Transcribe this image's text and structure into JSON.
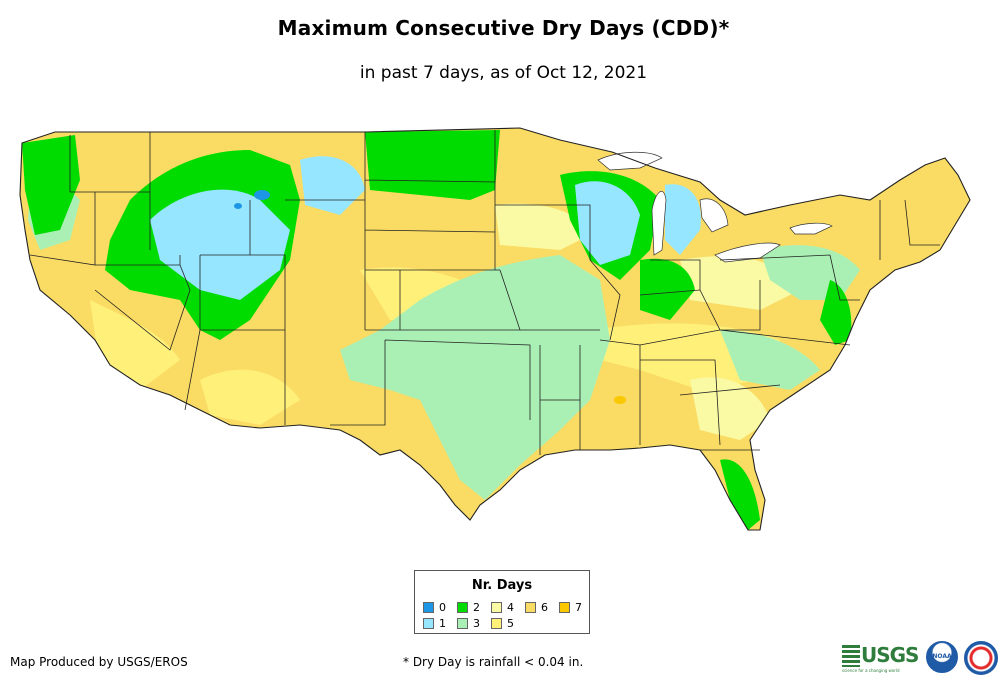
{
  "header": {
    "title": "Maximum Consecutive Dry Days (CDD)*",
    "subtitle": "in past 7 days, as of Oct 12, 2021"
  },
  "legend": {
    "title": "Nr. Days",
    "items": [
      {
        "label": "0",
        "color": "#1e96e6"
      },
      {
        "label": "1",
        "color": "#96e6ff"
      },
      {
        "label": "2",
        "color": "#00dc00"
      },
      {
        "label": "3",
        "color": "#aaf0b4"
      },
      {
        "label": "4",
        "color": "#fafaa5"
      },
      {
        "label": "5",
        "color": "#fff07a"
      },
      {
        "label": "6",
        "color": "#fadc64"
      },
      {
        "label": "7",
        "color": "#fac800"
      }
    ]
  },
  "footer": {
    "credit": "Map Produced by USGS/EROS",
    "footnote": "* Dry Day is rainfall < 0.04 in."
  },
  "logos": {
    "usgs_text": "USGS",
    "usgs_tagline": "science for a changing world",
    "noaa_text": "NOAA"
  }
}
